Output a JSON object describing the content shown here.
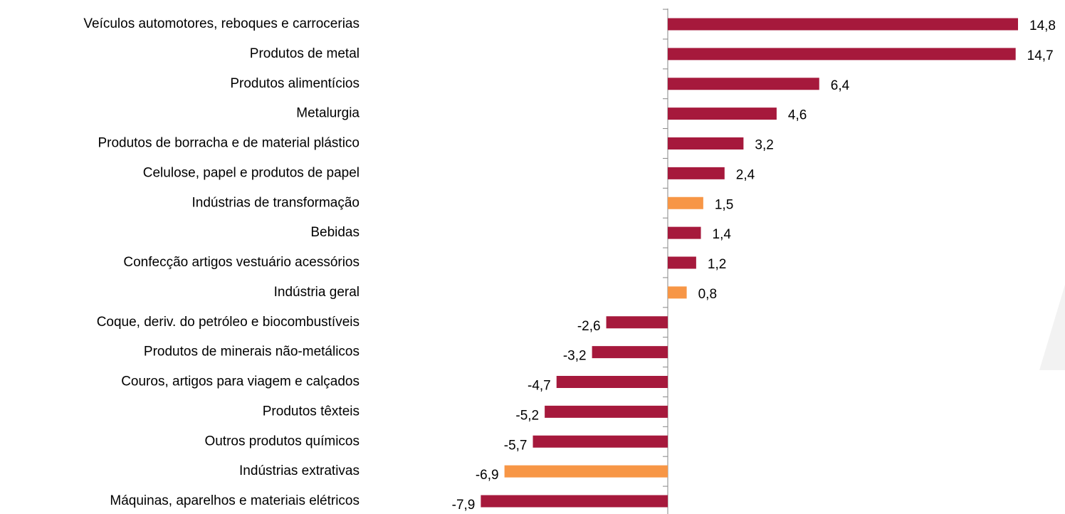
{
  "chart_data": {
    "type": "hbar",
    "categories": [
      "Veículos automotores, reboques e carrocerias",
      "Produtos de metal",
      "Produtos alimentícios",
      "Metalurgia",
      "Produtos de borracha e de material plástico",
      "Celulose, papel e produtos de papel",
      "Indústrias de transformação",
      "Bebidas",
      "Confecção artigos vestuário acessórios",
      "Indústria geral",
      "Coque, deriv. do petróleo e biocombustíveis",
      "Produtos de minerais não-metálicos",
      "Couros, artigos para viagem e calçados",
      "Produtos têxteis",
      "Outros produtos químicos",
      "Indústrias extrativas",
      "Máquinas, aparelhos e materiais elétricos"
    ],
    "values": [
      14.8,
      14.7,
      6.4,
      4.6,
      3.2,
      2.4,
      1.5,
      1.4,
      1.2,
      0.8,
      -2.6,
      -3.2,
      -4.7,
      -5.2,
      -5.7,
      -6.9,
      -7.9
    ],
    "value_labels": [
      "14,8",
      "14,7",
      "6,4",
      "4,6",
      "3,2",
      "2,4",
      "1,5",
      "1,4",
      "1,2",
      "0,8",
      "-2,6",
      "-3,2",
      "-4,7",
      "-5,2",
      "-5,7",
      "-6,9",
      "-7,9"
    ],
    "colors": [
      "#a6193c",
      "#a6193c",
      "#a6193c",
      "#a6193c",
      "#a6193c",
      "#a6193c",
      "#f79646",
      "#a6193c",
      "#a6193c",
      "#f79646",
      "#a6193c",
      "#a6193c",
      "#a6193c",
      "#a6193c",
      "#a6193c",
      "#f79646",
      "#a6193c"
    ]
  }
}
